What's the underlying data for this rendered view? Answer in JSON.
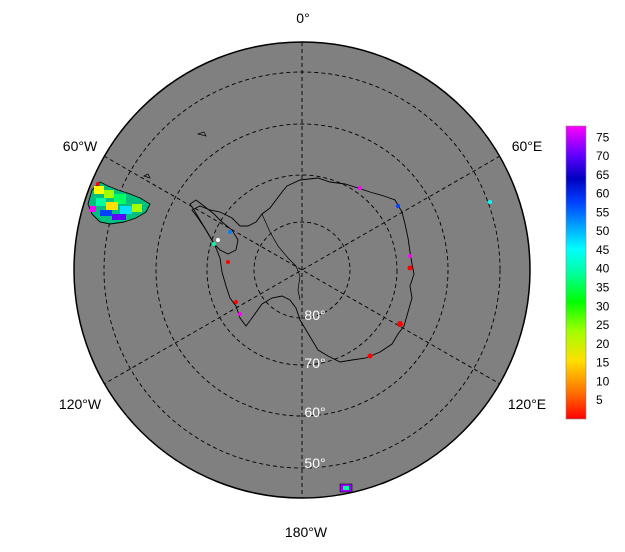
{
  "map": {
    "projection": "south-polar-stereographic",
    "background_color": "#808080",
    "land_outline_color": "#000000",
    "lon_labels": [
      {
        "lon": 0,
        "text": "0°"
      },
      {
        "lon": -60,
        "text": "60°W"
      },
      {
        "lon": 60,
        "text": "60°E"
      },
      {
        "lon": -120,
        "text": "120°W"
      },
      {
        "lon": 120,
        "text": "120°E"
      },
      {
        "lon": 180,
        "text": "180°W"
      }
    ],
    "lat_labels": [
      {
        "lat": -80,
        "text": "80°"
      },
      {
        "lat": -70,
        "text": "70°"
      },
      {
        "lat": -60,
        "text": "60°"
      },
      {
        "lat": -50,
        "text": "50°"
      }
    ]
  },
  "colorbar": {
    "ticks": [
      "75",
      "70",
      "65",
      "60",
      "55",
      "50",
      "45",
      "40",
      "35",
      "30",
      "25",
      "20",
      "15",
      "10",
      "5"
    ],
    "range": [
      0,
      78
    ],
    "colors": [
      "#ff0000",
      "#ff8000",
      "#ffe000",
      "#a0ff00",
      "#00ff00",
      "#00ffa0",
      "#00ffff",
      "#00a0ff",
      "#0040ff",
      "#0000c0",
      "#6000ff",
      "#a000ff",
      "#ff00ff"
    ]
  }
}
